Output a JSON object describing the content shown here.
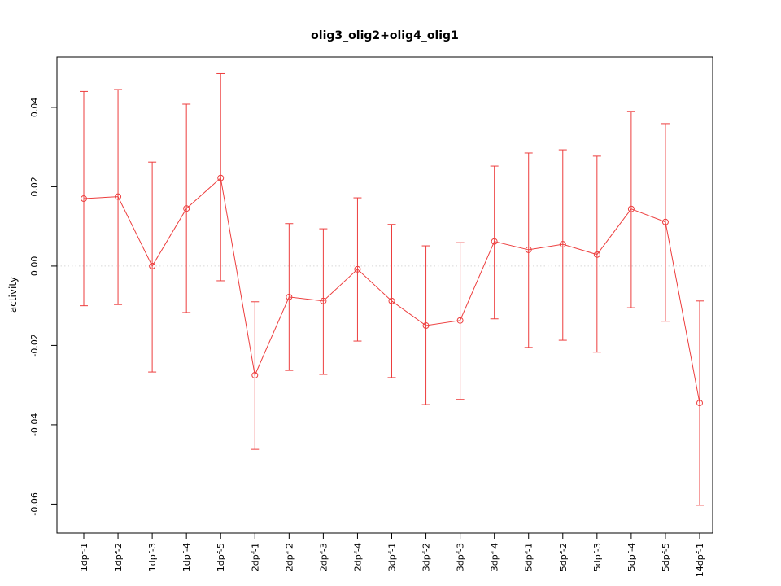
{
  "chart_data": {
    "type": "line",
    "title": "olig3_olig2+olig4_olig1",
    "ylabel": "activity",
    "xlabel": "",
    "categories": [
      "1dpf-1",
      "1dpf-2",
      "1dpf-3",
      "1dpf-4",
      "1dpf-5",
      "2dpf-1",
      "2dpf-2",
      "2dpf-3",
      "2dpf-4",
      "3dpf-1",
      "3dpf-2",
      "3dpf-3",
      "3dpf-4",
      "5dpf-1",
      "5dpf-2",
      "5dpf-3",
      "5dpf-4",
      "5dpf-5",
      "14dpf-1"
    ],
    "series": [
      {
        "name": "activity",
        "marker": "open-circle",
        "values": [
          0.017,
          0.0175,
          0.0,
          0.0145,
          0.0222,
          -0.0275,
          -0.0078,
          -0.0088,
          -0.0008,
          -0.0088,
          -0.015,
          -0.0137,
          0.0062,
          0.0041,
          0.0055,
          0.0029,
          0.0144,
          0.0111,
          -0.0345
        ],
        "upper": [
          0.044,
          0.0445,
          0.0262,
          0.0408,
          0.0485,
          -0.009,
          0.0107,
          0.0094,
          0.0172,
          0.0105,
          0.0051,
          0.0059,
          0.0252,
          0.0285,
          0.0293,
          0.0277,
          0.039,
          0.0359,
          -0.0088
        ],
        "lower": [
          -0.01,
          -0.0097,
          -0.0267,
          -0.0117,
          -0.0037,
          -0.0462,
          -0.0263,
          -0.0273,
          -0.0189,
          -0.0281,
          -0.0349,
          -0.0336,
          -0.0133,
          -0.0205,
          -0.0187,
          -0.0217,
          -0.0105,
          -0.0139,
          -0.0603
        ]
      }
    ],
    "yticks": [
      0.04,
      0.02,
      0.0,
      -0.02,
      -0.04,
      -0.06
    ],
    "ylim": [
      -0.0673,
      0.0527
    ],
    "grid": "dotted-zero-reference-line",
    "legend": "none",
    "colors": {
      "series": "#ed3e3e",
      "zero_line": "#d8d8d8",
      "axis": "#000000",
      "background": "#ffffff"
    }
  }
}
